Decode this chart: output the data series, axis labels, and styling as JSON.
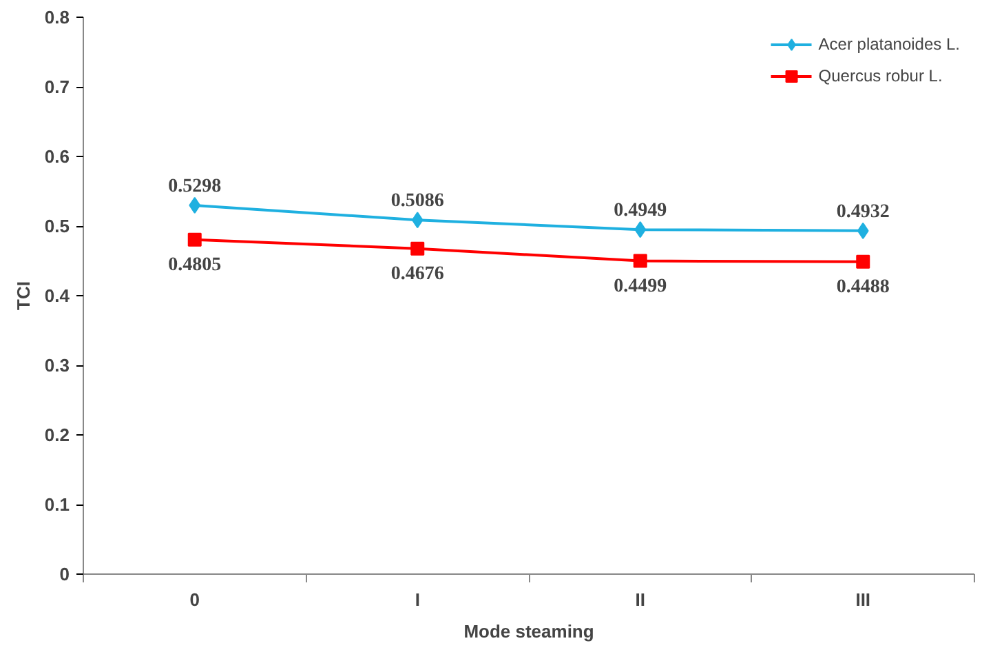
{
  "chart_data": {
    "type": "line",
    "xlabel": "Mode steaming",
    "ylabel": "TCI",
    "categories": [
      "0",
      "I",
      "II",
      "III"
    ],
    "series": [
      {
        "name": "Acer platanoides L.",
        "color": "#1fb0e0",
        "marker": "diamond",
        "values": [
          0.5298,
          0.5086,
          0.4949,
          0.4932
        ]
      },
      {
        "name": "Quercus robur L.",
        "color": "#ff0000",
        "marker": "square",
        "values": [
          0.4805,
          0.4676,
          0.4499,
          0.4488
        ]
      }
    ],
    "ylim": [
      0,
      0.8
    ],
    "yticks": [
      0,
      0.1,
      0.2,
      0.3,
      0.4,
      0.5,
      0.6,
      0.7,
      0.8
    ],
    "grid": false,
    "legend": "top right",
    "data_labels": true,
    "line_style": "solid"
  }
}
